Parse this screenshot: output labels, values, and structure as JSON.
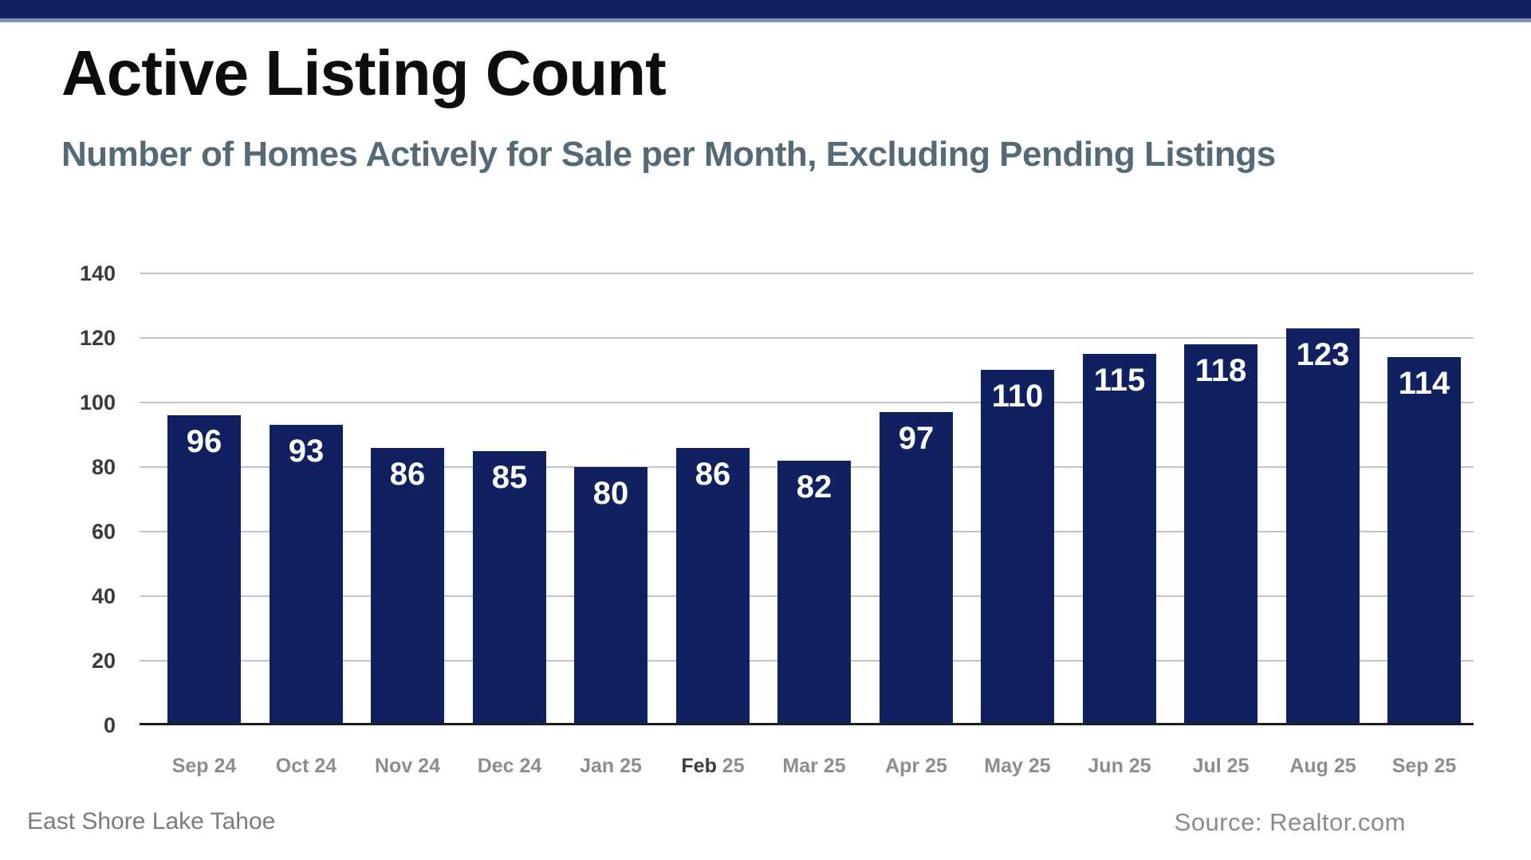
{
  "page": {
    "title": "Active Listing Count",
    "subtitle": "Number of Homes Actively for Sale per Month, Excluding Pending Listings",
    "footer_left": "East Shore Lake Tahoe",
    "footer_right": "Source: Realtor.com"
  },
  "colors": {
    "header_bar": "#112060",
    "header_divider": "#8091ad",
    "title_text": "#0d0d0d",
    "subtitle_text": "#556a76",
    "bar_fill": "#112060",
    "bar_value_text": "#ffffff",
    "gridline": "#c4c4c4",
    "axis_line": "#1d1d1d",
    "y_label_text": "#3b3b3b",
    "x_label_text": "#8d8d8d",
    "x_label_emphasis_text": "#3c3c3c",
    "footer_text": "#7b7b7b"
  },
  "chart_data": {
    "type": "bar",
    "title": "Active Listing Count",
    "subtitle": "Number of Homes Actively for Sale per Month, Excluding Pending Listings",
    "categories": [
      "Sep 24",
      "Oct 24",
      "Nov 24",
      "Dec 24",
      "Jan 25",
      "Feb 25",
      "Mar 25",
      "Apr 25",
      "May 25",
      "Jun 25",
      "Jul 25",
      "Aug 25",
      "Sep 25"
    ],
    "values": [
      96,
      93,
      86,
      85,
      80,
      86,
      82,
      97,
      110,
      115,
      118,
      123,
      114
    ],
    "xlabel": "",
    "ylabel": "",
    "ylim": [
      0,
      140
    ],
    "yticks": [
      0,
      20,
      40,
      60,
      80,
      100,
      120,
      140
    ],
    "grid": true,
    "legend": false,
    "bar_color": "#112060",
    "value_label_position": "inside-top",
    "value_label_color": "#ffffff",
    "emphasized_category": "Feb 25",
    "annotations": {
      "bottom_left": "East Shore Lake Tahoe",
      "bottom_right": "Source: Realtor.com"
    }
  }
}
